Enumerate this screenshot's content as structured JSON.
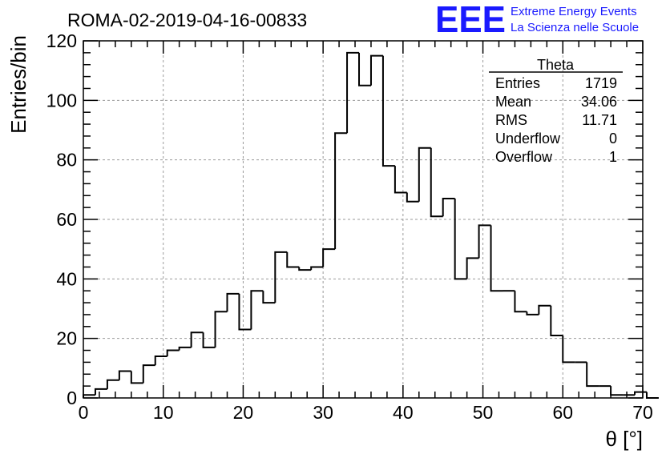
{
  "header": {
    "run_title": "ROMA-02-2019-04-16-00833",
    "logo_text": "EEE",
    "logo_line1": "Extreme Energy Events",
    "logo_line2": "La Scienza nelle Scuole"
  },
  "stats_box": {
    "title": "Theta",
    "rows": [
      {
        "label": "Entries",
        "value": "1719"
      },
      {
        "label": "Mean",
        "value": "34.06"
      },
      {
        "label": "RMS",
        "value": "11.71"
      },
      {
        "label": "Underflow",
        "value": "0"
      },
      {
        "label": "Overflow",
        "value": "1"
      }
    ]
  },
  "colors": {
    "logo": "#1a1aff",
    "histogram_line": "#000000",
    "grid": "#9a9a9a"
  },
  "chart_data": {
    "type": "bar",
    "style": "step-histogram",
    "xlabel": "θ [°]",
    "ylabel": "Entries/bin",
    "xlim": [
      0,
      70
    ],
    "ylim": [
      0,
      120
    ],
    "x_ticks": [
      0,
      10,
      20,
      30,
      40,
      50,
      60,
      70
    ],
    "y_ticks": [
      0,
      20,
      40,
      60,
      80,
      100,
      120
    ],
    "grid": true,
    "legend": "top-right",
    "bin_width": 1.5,
    "x_start": 0,
    "values": [
      1,
      3,
      6,
      9,
      5,
      11,
      14,
      16,
      17,
      22,
      17,
      29,
      35,
      23,
      36,
      32,
      49,
      44,
      43,
      44,
      50,
      89,
      116,
      105,
      115,
      78,
      69,
      66,
      84,
      61,
      67,
      40,
      47,
      58,
      36,
      36,
      29,
      28,
      31,
      21,
      12,
      12,
      4,
      4,
      1,
      1,
      2,
      0
    ]
  }
}
